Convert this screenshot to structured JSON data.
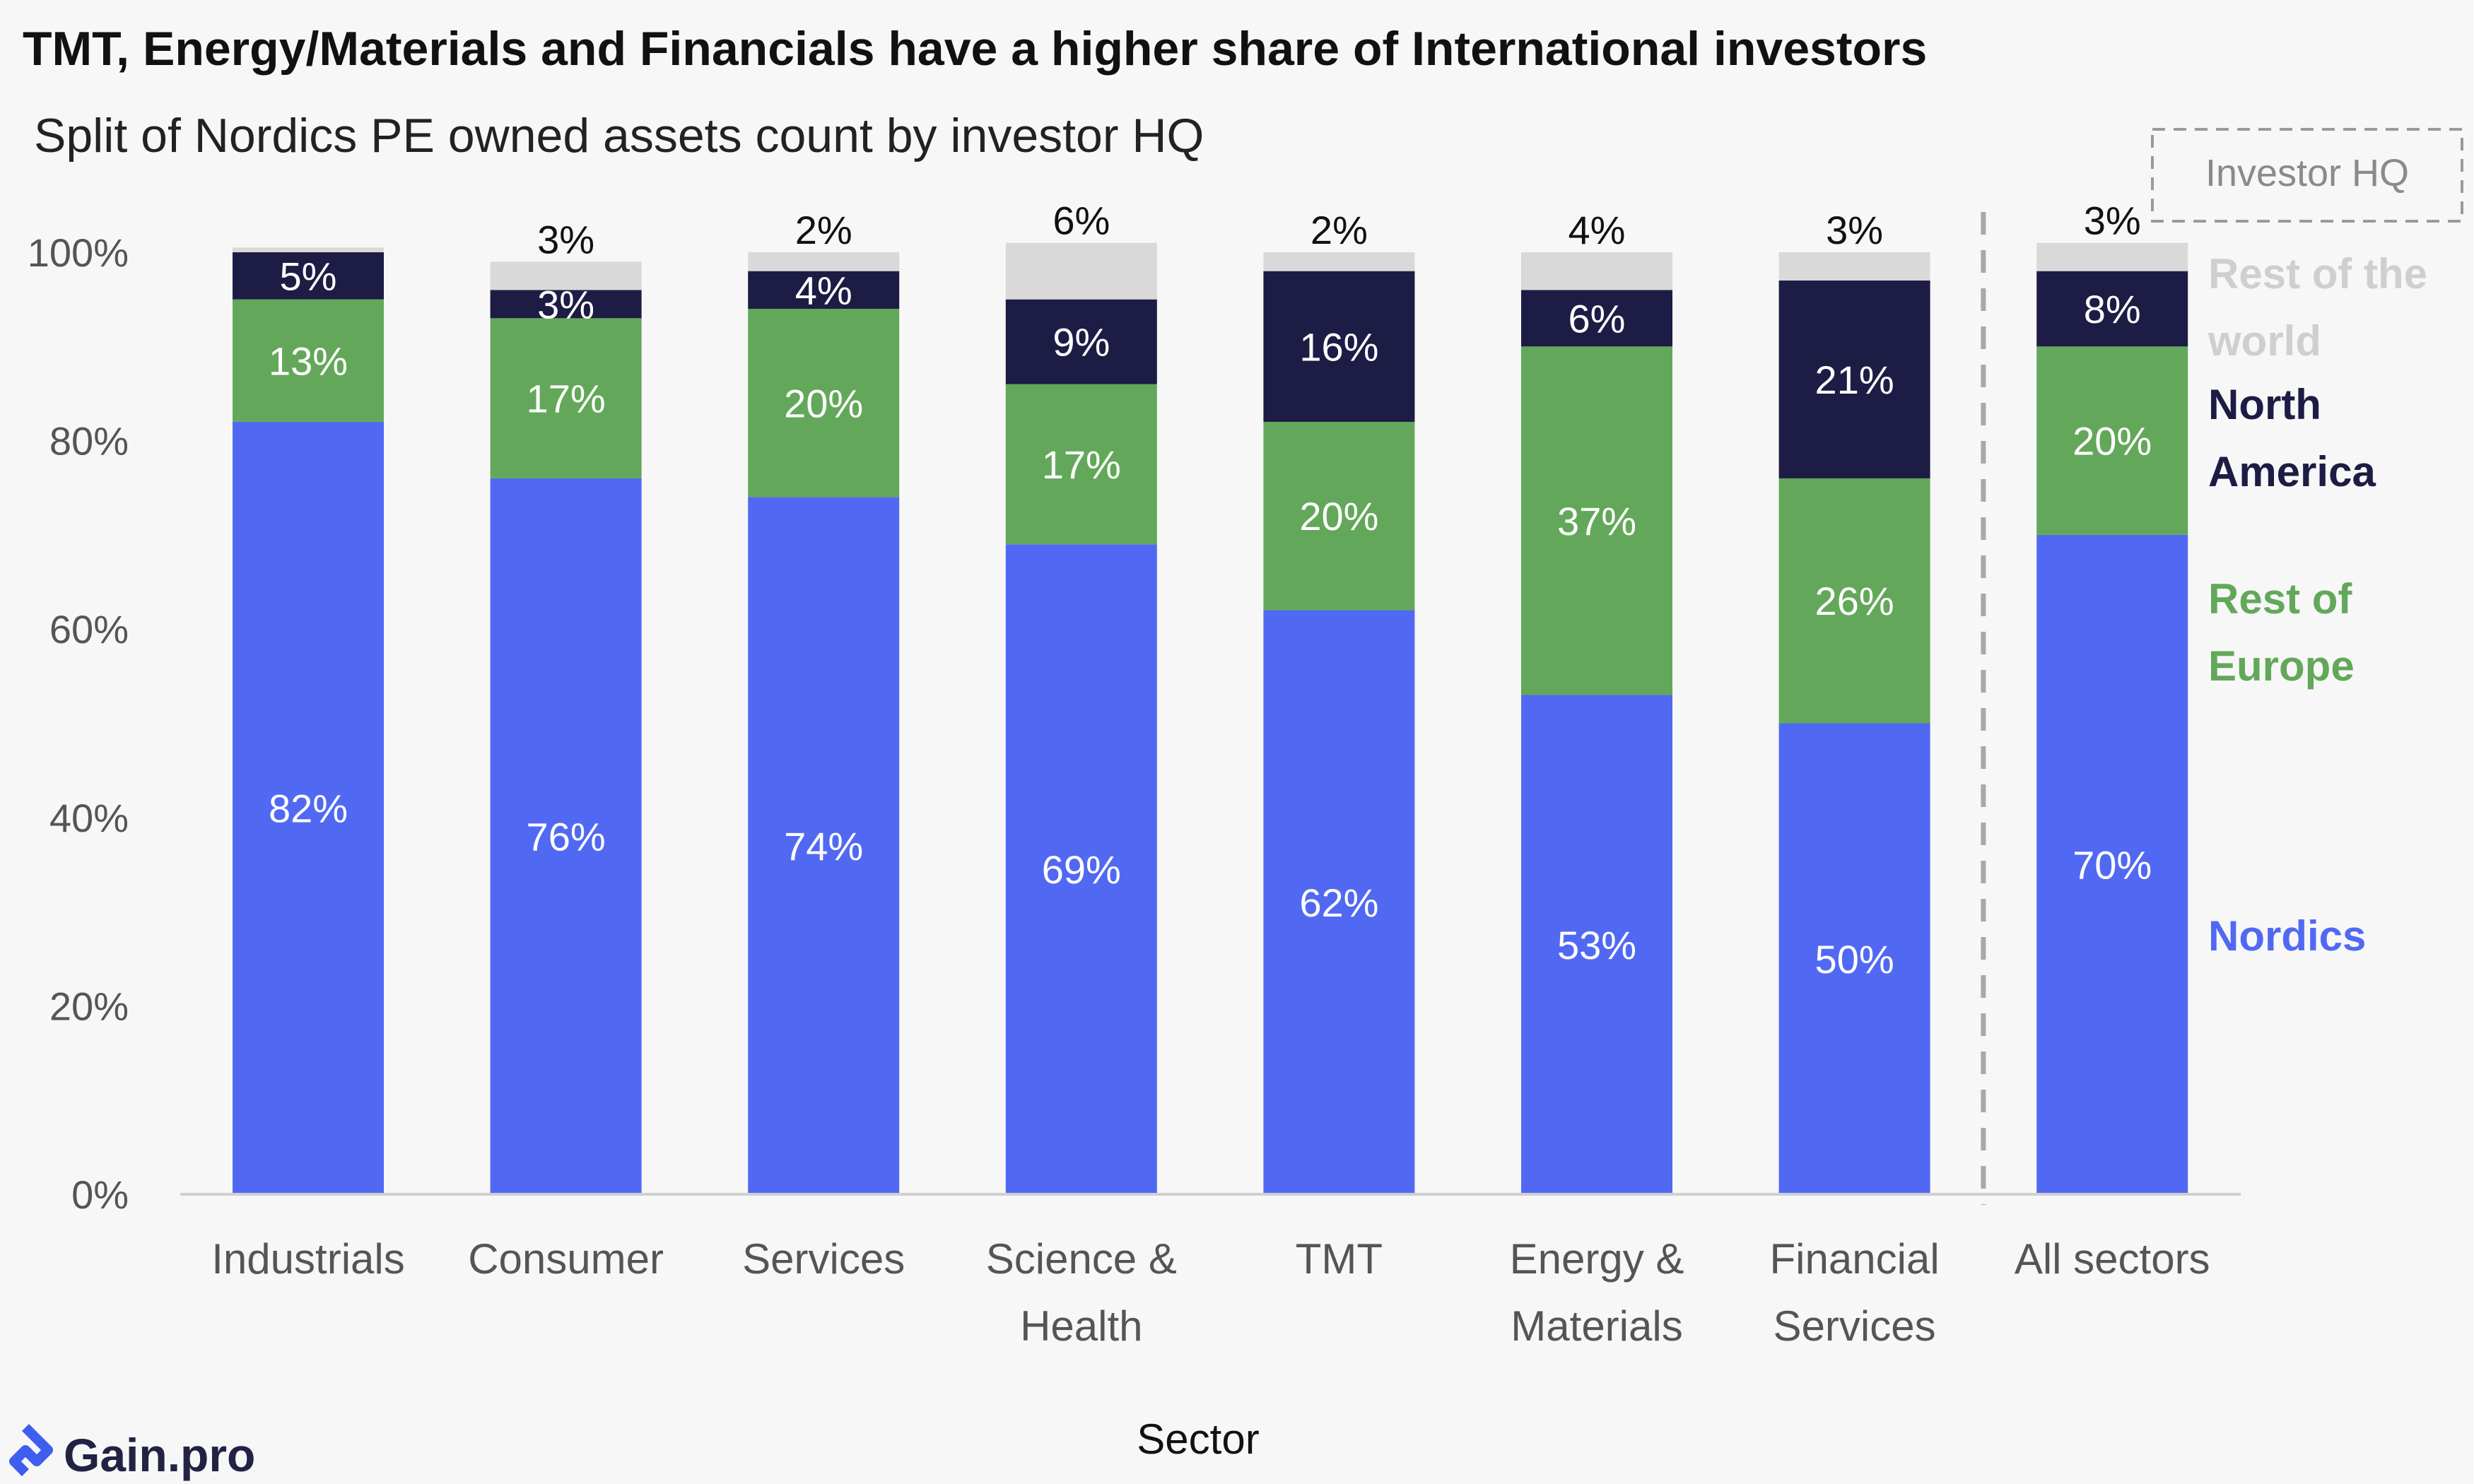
{
  "title": "TMT, Energy/Materials and Financials have a higher share of International investors",
  "subtitle": "Split of Nordics PE owned assets count by investor HQ",
  "legend_title": "Investor HQ",
  "brand": "Gain.pro",
  "colors": {
    "nordics": "#5169f2",
    "rest_of_europe": "#63a85a",
    "north_america": "#1c1c44",
    "rest_of_world": "#d9d9d9",
    "background": "#f7f7f7",
    "axis_text": "#555555",
    "brand_blue": "#3f5ef0"
  },
  "chart_data": {
    "type": "bar",
    "stacked": true,
    "xlabel": "Sector",
    "ylabel": "",
    "ylim": [
      0,
      100
    ],
    "yticks": [
      "0%",
      "20%",
      "40%",
      "60%",
      "80%",
      "100%"
    ],
    "grid": false,
    "legend_position": "right",
    "categories": [
      [
        "Industrials"
      ],
      [
        "Consumer"
      ],
      [
        "Services"
      ],
      [
        "Science &",
        "Health"
      ],
      [
        "TMT"
      ],
      [
        "Energy &",
        "Materials"
      ],
      [
        "Financial",
        "Services"
      ],
      [
        "All sectors"
      ]
    ],
    "series": [
      {
        "name": "Nordics",
        "legend_lines": [
          "Nordics"
        ],
        "color_key": "nordics",
        "values": [
          82,
          76,
          74,
          69,
          62,
          53,
          50,
          70
        ],
        "labels": [
          "82%",
          "76%",
          "74%",
          "69%",
          "62%",
          "53%",
          "50%",
          "70%"
        ]
      },
      {
        "name": "Rest of Europe",
        "legend_lines": [
          "Rest of",
          "Europe"
        ],
        "color_key": "rest_of_europe",
        "values": [
          13,
          17,
          20,
          17,
          20,
          37,
          26,
          20
        ],
        "labels": [
          "13%",
          "17%",
          "20%",
          "17%",
          "20%",
          "37%",
          "26%",
          "20%"
        ]
      },
      {
        "name": "North America",
        "legend_lines": [
          "North",
          "America"
        ],
        "color_key": "north_america",
        "values": [
          5,
          3,
          4,
          9,
          16,
          6,
          21,
          8
        ],
        "labels": [
          "5%",
          "3%",
          "4%",
          "9%",
          "16%",
          "6%",
          "21%",
          "8%"
        ]
      },
      {
        "name": "Rest of the world",
        "legend_lines": [
          "Rest of the",
          "world"
        ],
        "color_key": "rest_of_world",
        "values": [
          0.5,
          3,
          2,
          6,
          2,
          4,
          3,
          3
        ],
        "labels": [
          "",
          "3%",
          "2%",
          "6%",
          "2%",
          "4%",
          "3%",
          "3%"
        ]
      }
    ],
    "separator_before_category": 7
  }
}
